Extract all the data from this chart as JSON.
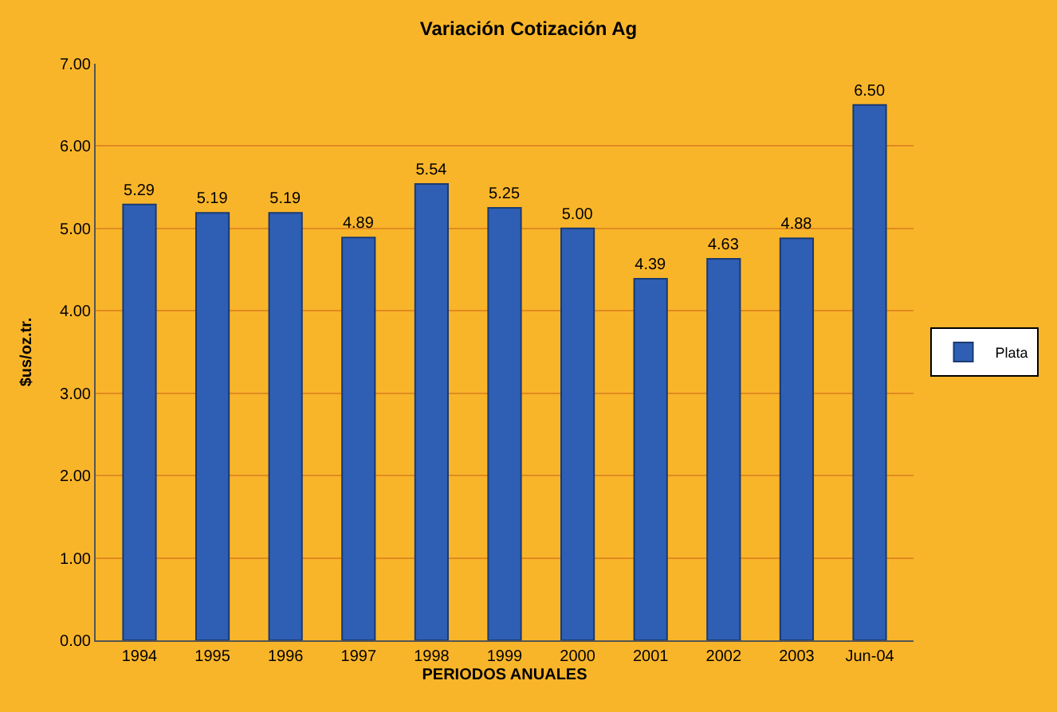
{
  "chart_data": {
    "type": "bar",
    "title": "Variación Cotización Ag",
    "xlabel": "PERIODOS ANUALES",
    "ylabel": "$us/oz.tr.",
    "categories": [
      "1994",
      "1995",
      "1996",
      "1997",
      "1998",
      "1999",
      "2000",
      "2001",
      "2002",
      "2003",
      "Jun-04"
    ],
    "series": [
      {
        "name": "Plata",
        "color": "#2f5fb4",
        "values": [
          5.29,
          5.19,
          5.19,
          4.89,
          5.54,
          5.25,
          5.0,
          4.39,
          4.63,
          4.88,
          6.5
        ],
        "value_labels": [
          "5.29",
          "5.19",
          "5.19",
          "4.89",
          "5.54",
          "5.25",
          "5.00",
          "4.39",
          "4.63",
          "4.88",
          "6.50"
        ]
      }
    ],
    "ylim": [
      0,
      7
    ],
    "yticks": [
      {
        "value": 0,
        "label": "0.00"
      },
      {
        "value": 1,
        "label": "1.00"
      },
      {
        "value": 2,
        "label": "2.00"
      },
      {
        "value": 3,
        "label": "3.00"
      },
      {
        "value": 4,
        "label": "4.00"
      },
      {
        "value": 5,
        "label": "5.00"
      },
      {
        "value": 6,
        "label": "6.00"
      },
      {
        "value": 7,
        "label": "7.00"
      }
    ],
    "grid": "y",
    "legend": "right"
  }
}
